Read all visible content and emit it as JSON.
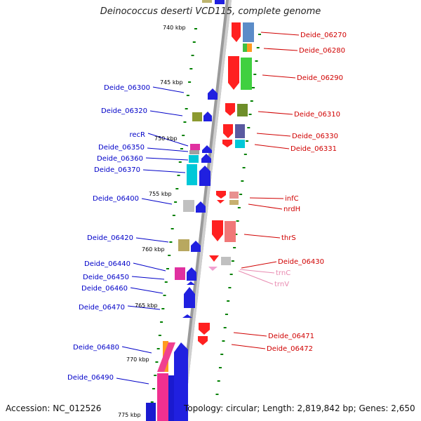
{
  "title": "Deinococcus deserti VCD115, complete genome",
  "footer": {
    "accession": "Accession: NC_012526",
    "summary": "Topology: circular; Length: 2,819,842 bp; Genes: 2,650"
  },
  "colors": {
    "left_label": "#0000c8",
    "right_label": "#d00000",
    "rna_label": "#e88ab0",
    "tick": "#008000",
    "backbone": "#8a8a8a"
  },
  "ticks": [
    {
      "label": "740 kbp"
    },
    {
      "label": "745 kbp"
    },
    {
      "label": "750 kbp"
    },
    {
      "label": "755 kbp"
    },
    {
      "label": "760 kbp"
    },
    {
      "label": "765 kbp"
    },
    {
      "label": "770 kbp"
    },
    {
      "label": "775 kbp"
    }
  ],
  "left_labels": [
    {
      "text": "Deide_06300"
    },
    {
      "text": "Deide_06320"
    },
    {
      "text": "recR"
    },
    {
      "text": "Deide_06350"
    },
    {
      "text": "Deide_06360"
    },
    {
      "text": "Deide_06370"
    },
    {
      "text": "Deide_06400"
    },
    {
      "text": "Deide_06420"
    },
    {
      "text": "Deide_06440"
    },
    {
      "text": "Deide_06450"
    },
    {
      "text": "Deide_06460"
    },
    {
      "text": "Deide_06470"
    },
    {
      "text": "Deide_06480"
    },
    {
      "text": "Deide_06490"
    }
  ],
  "right_labels": [
    {
      "text": "Deide_06270",
      "kind": "gene"
    },
    {
      "text": "Deide_06280",
      "kind": "gene"
    },
    {
      "text": "Deide_06290",
      "kind": "gene"
    },
    {
      "text": "Deide_06310",
      "kind": "gene"
    },
    {
      "text": "Deide_06330",
      "kind": "gene"
    },
    {
      "text": "Deide_06331",
      "kind": "gene"
    },
    {
      "text": "infC",
      "kind": "gene"
    },
    {
      "text": "nrdH",
      "kind": "gene"
    },
    {
      "text": "thrS",
      "kind": "gene"
    },
    {
      "text": "Deide_06430",
      "kind": "gene"
    },
    {
      "text": "trnC",
      "kind": "rna"
    },
    {
      "text": "trnV",
      "kind": "rna"
    },
    {
      "text": "Deide_06471",
      "kind": "gene"
    },
    {
      "text": "Deide_06472",
      "kind": "gene"
    }
  ]
}
